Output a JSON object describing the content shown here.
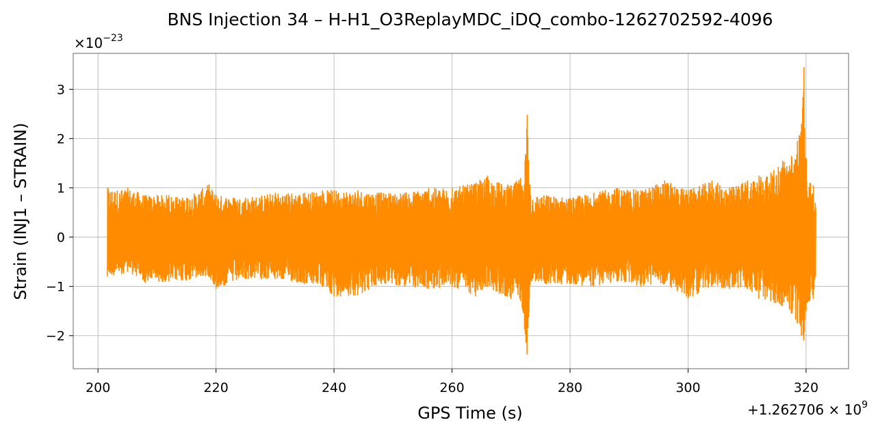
{
  "chart_data": {
    "type": "line",
    "title": "BNS Injection 34 – H-H1_O3ReplayMDC_iDQ_combo-1262702592-4096",
    "xlabel": "GPS Time (s)",
    "ylabel": "Strain (INJ1 – STRAIN)",
    "x_offset_text": "+1.262706×10^9",
    "x_offset_base": "+1.262706",
    "x_offset_exp": "9",
    "y_multiplier_text": "×10^−23",
    "y_multiplier_exp": "−23",
    "x_ticks": [
      200,
      220,
      240,
      260,
      280,
      300,
      320
    ],
    "y_ticks": [
      -2,
      -1,
      0,
      1,
      2,
      3
    ],
    "y_tick_labels": [
      "−2",
      "−1",
      "0",
      "1",
      "2",
      "3"
    ],
    "xlim": [
      195.8,
      327.2
    ],
    "ylim": [
      -2.67,
      3.73
    ],
    "grid": true,
    "legend": "none",
    "series": [
      {
        "color": "#ff8c00",
        "x_start": 201.6,
        "x_end": 321.6,
        "envelope": [
          [
            201.6,
            -0.8,
            1.0
          ],
          [
            204.0,
            -0.75,
            0.95
          ],
          [
            205.0,
            -0.7,
            1.0
          ],
          [
            208.0,
            -0.92,
            0.85
          ],
          [
            212.0,
            -0.9,
            0.85
          ],
          [
            215.0,
            -0.88,
            0.8
          ],
          [
            218.8,
            -0.8,
            1.07
          ],
          [
            220.0,
            -1.05,
            0.85
          ],
          [
            225.0,
            -0.85,
            0.8
          ],
          [
            230.0,
            -0.85,
            0.9
          ],
          [
            235.0,
            -0.95,
            0.9
          ],
          [
            238.0,
            -1.0,
            0.95
          ],
          [
            240.0,
            -1.2,
            0.95
          ],
          [
            244.0,
            -1.18,
            0.95
          ],
          [
            248.0,
            -0.95,
            0.9
          ],
          [
            252.0,
            -1.0,
            0.9
          ],
          [
            256.0,
            -1.05,
            1.0
          ],
          [
            260.0,
            -1.0,
            1.0
          ],
          [
            264.0,
            -1.2,
            1.1
          ],
          [
            266.0,
            -1.0,
            1.25
          ],
          [
            268.0,
            -1.15,
            1.1
          ],
          [
            270.0,
            -1.25,
            1.05
          ],
          [
            271.6,
            -1.3,
            1.2
          ],
          [
            272.0,
            -1.5,
            0.95
          ],
          [
            272.7,
            -2.38,
            2.48
          ],
          [
            273.3,
            -0.9,
            0.85
          ],
          [
            276.0,
            -0.95,
            0.85
          ],
          [
            280.0,
            -0.95,
            0.8
          ],
          [
            284.0,
            -1.0,
            0.9
          ],
          [
            288.0,
            -0.9,
            1.0
          ],
          [
            292.0,
            -1.0,
            0.95
          ],
          [
            296.0,
            -0.95,
            1.15
          ],
          [
            300.0,
            -1.25,
            0.95
          ],
          [
            304.0,
            -1.0,
            1.15
          ],
          [
            307.0,
            -1.05,
            1.0
          ],
          [
            310.0,
            -1.05,
            1.15
          ],
          [
            312.0,
            -1.25,
            1.25
          ],
          [
            314.0,
            -1.3,
            1.3
          ],
          [
            316.0,
            -1.4,
            1.55
          ],
          [
            317.5,
            -1.55,
            1.65
          ],
          [
            318.5,
            -1.75,
            1.95
          ],
          [
            319.2,
            -2.0,
            2.3
          ],
          [
            319.6,
            -2.1,
            3.45
          ],
          [
            320.0,
            -1.5,
            1.6
          ],
          [
            320.6,
            -1.3,
            1.1
          ],
          [
            321.2,
            -1.25,
            1.05
          ],
          [
            321.6,
            -0.8,
            0.6
          ]
        ]
      }
    ]
  }
}
